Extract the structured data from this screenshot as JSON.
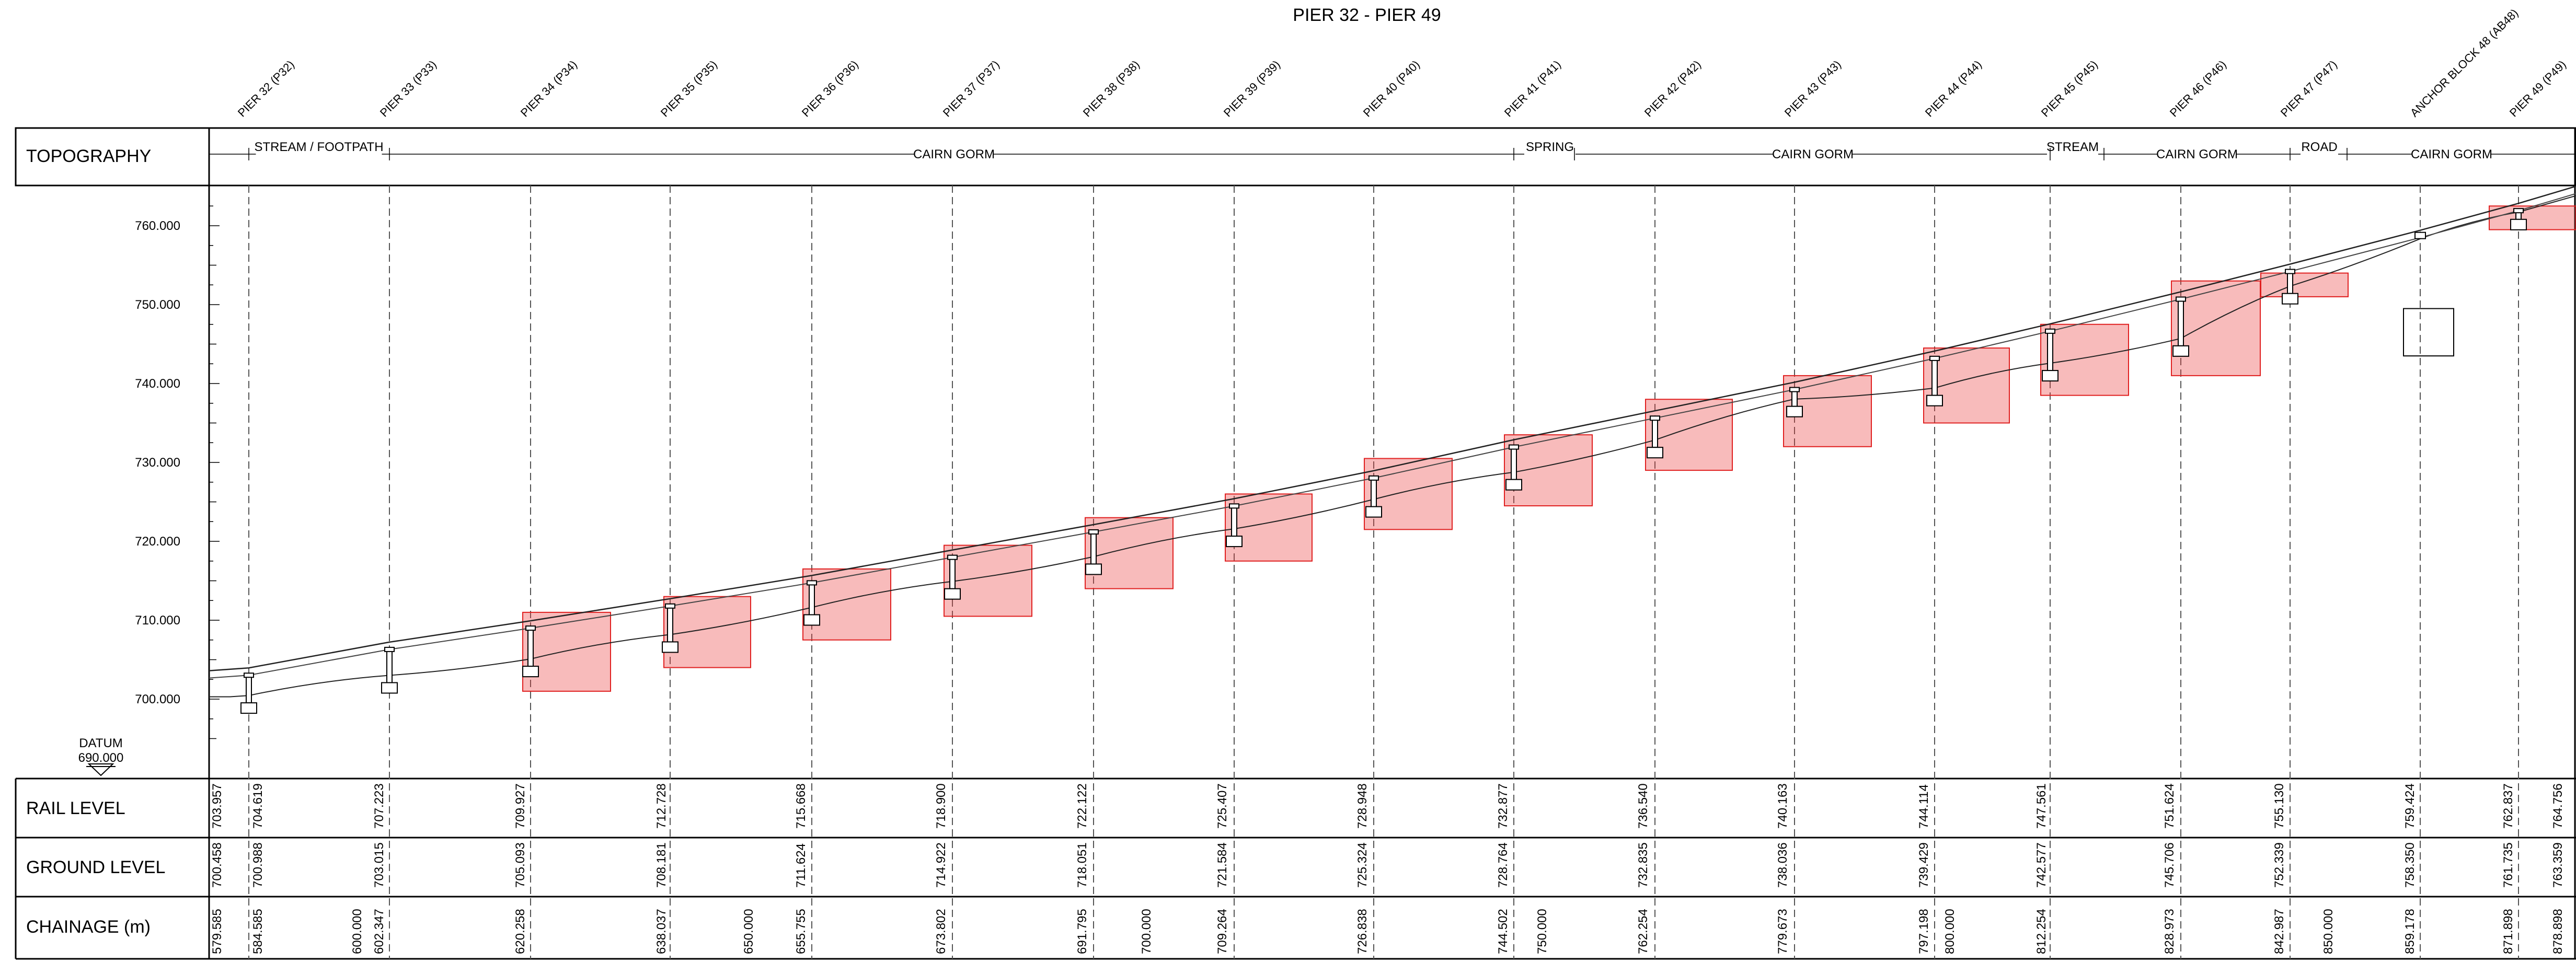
{
  "title": "PIER 32 - PIER 49",
  "rows": {
    "topography": "TOPOGRAPHY",
    "rail_level": "RAIL LEVEL",
    "ground_level": "GROUND LEVEL",
    "chainage": "CHAINAGE (m)"
  },
  "datum": {
    "label": "DATUM",
    "value": "690.000"
  },
  "elevation_axis": {
    "ticks": [
      "700.000",
      "710.000",
      "720.000",
      "730.000",
      "740.000",
      "750.000",
      "760.000"
    ]
  },
  "piers": [
    "PIER 32 (P32)",
    "PIER 33 (P33)",
    "PIER 34 (P34)",
    "PIER 35 (P35)",
    "PIER 36 (P36)",
    "PIER 37 (P37)",
    "PIER 38 (P38)",
    "PIER 39 (P39)",
    "PIER 40 (P40)",
    "PIER 41 (P41)",
    "PIER 42 (P42)",
    "PIER 43 (P43)",
    "PIER 44 (P44)",
    "PIER 45 (P45)",
    "PIER 46 (P46)",
    "PIER 47 (P47)",
    "ANCHOR BLOCK 48 (AB48)",
    "PIER 49 (P49)"
  ],
  "topography": [
    "STREAM / FOOTPATH",
    "CAIRN GORM",
    "SPRING",
    "CAIRN GORM",
    "STREAM",
    "CAIRN GORM",
    "ROAD",
    "CAIRN GORM"
  ],
  "chart_data": {
    "type": "table",
    "series": [
      {
        "name": "RAIL LEVEL",
        "values": [
          "703.957",
          "704.619",
          "707.223",
          "709.927",
          "712.728",
          "715.668",
          "718.900",
          "722.122",
          "725.407",
          "728.948",
          "732.877",
          "736.540",
          "740.163",
          "744.114",
          "747.561",
          "751.624",
          "755.130",
          "759.424",
          "762.837",
          "764.756"
        ]
      },
      {
        "name": "GROUND LEVEL",
        "values": [
          "700.458",
          "700.988",
          "703.015",
          "705.093",
          "708.181",
          "711.624",
          "714.922",
          "718.051",
          "721.584",
          "725.324",
          "728.764",
          "732.835",
          "738.036",
          "739.429",
          "742.577",
          "745.706",
          "752.339",
          "758.350",
          "761.735",
          "763.359"
        ]
      },
      {
        "name": "CHAINAGE (m)",
        "values": [
          "579.585",
          "584.585",
          "600.000",
          "602.347",
          "620.258",
          "638.037",
          "650.000",
          "655.755",
          "673.802",
          "691.795",
          "700.000",
          "709.264",
          "726.838",
          "744.502",
          "750.000",
          "762.254",
          "779.673",
          "797.198",
          "800.000",
          "812.254",
          "828.973",
          "842.987",
          "850.000",
          "859.178",
          "871.898",
          "878.898"
        ]
      }
    ],
    "ylim": [
      690,
      765
    ]
  }
}
